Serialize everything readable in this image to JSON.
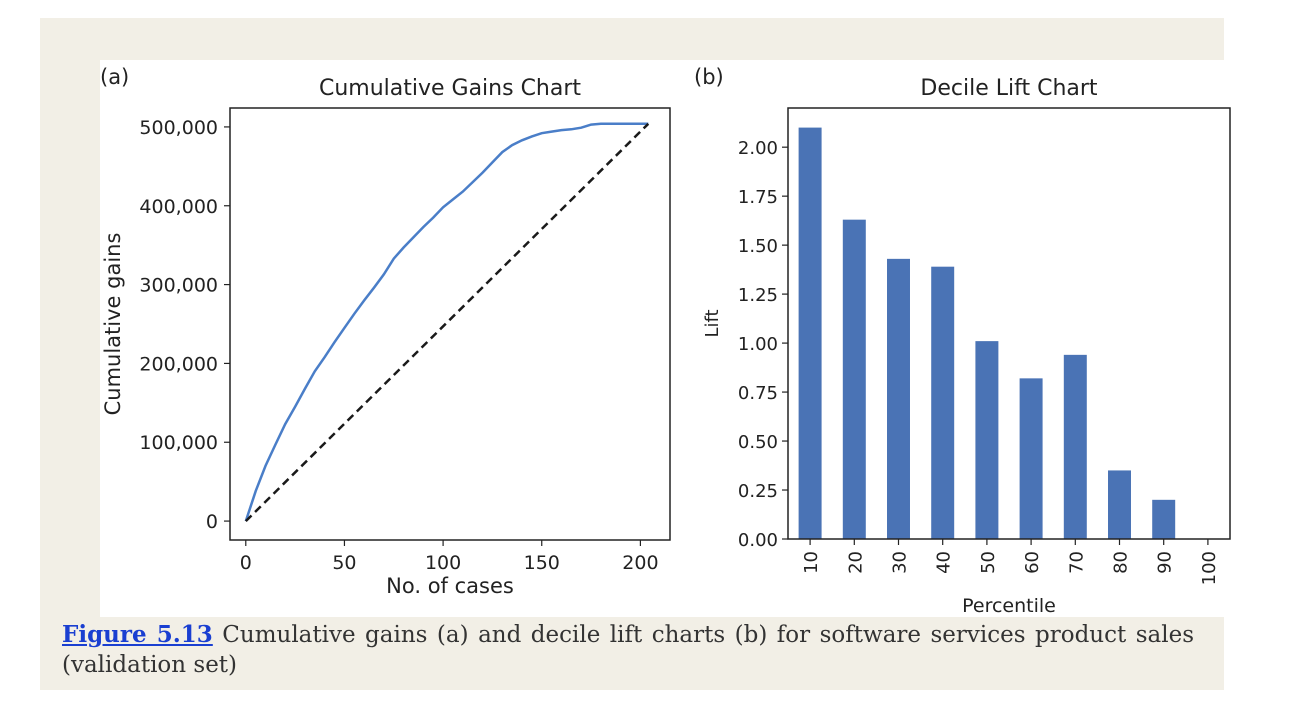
{
  "chart_data": [
    {
      "type": "line",
      "panel_label": "(a)",
      "title": "Cumulative Gains Chart",
      "xlabel": "No. of cases",
      "ylabel": "Cumulative gains",
      "xlim": [
        -8,
        215
      ],
      "ylim": [
        -24000,
        524000
      ],
      "xticks": [
        0,
        50,
        100,
        150,
        200
      ],
      "xtick_labels": [
        "0",
        "50",
        "100",
        "150",
        "200"
      ],
      "yticks": [
        0,
        100000,
        200000,
        300000,
        400000,
        500000
      ],
      "ytick_labels": [
        "0",
        "100,000",
        "200,000",
        "300,000",
        "400,000",
        "500,000"
      ],
      "grid": false,
      "series": [
        {
          "color": "#4a7ec8",
          "style": "solid",
          "x": [
            0,
            5,
            10,
            15,
            20,
            25,
            30,
            35,
            40,
            45,
            50,
            55,
            60,
            65,
            70,
            75,
            80,
            85,
            90,
            95,
            100,
            105,
            110,
            115,
            120,
            125,
            130,
            135,
            140,
            145,
            150,
            155,
            160,
            165,
            170,
            175,
            180,
            185,
            190,
            195,
            204
          ],
          "y": [
            0,
            38000,
            70000,
            97000,
            123000,
            145000,
            168000,
            190000,
            208000,
            227000,
            245000,
            263000,
            280000,
            296000,
            313000,
            333000,
            347000,
            360000,
            373000,
            385000,
            398000,
            408000,
            418000,
            430000,
            442000,
            455000,
            468000,
            477000,
            483000,
            488000,
            492000,
            494000,
            496000,
            497000,
            499000,
            503000,
            504000,
            504000,
            504000,
            504000,
            504000
          ]
        },
        {
          "color": "#1a1a1a",
          "style": "dashed",
          "x": [
            0,
            204
          ],
          "y": [
            0,
            504000
          ]
        }
      ]
    },
    {
      "type": "bar",
      "panel_label": "(b)",
      "title": "Decile Lift Chart",
      "xlabel": "Percentile",
      "ylabel": "Lift",
      "categories": [
        "10",
        "20",
        "30",
        "40",
        "50",
        "60",
        "70",
        "80",
        "90",
        "100"
      ],
      "values": [
        2.1,
        1.63,
        1.43,
        1.39,
        1.01,
        0.82,
        0.94,
        0.35,
        0.2,
        0
      ],
      "ylim": [
        0,
        2.2
      ],
      "yticks": [
        0,
        0.25,
        0.5,
        0.75,
        1.0,
        1.25,
        1.5,
        1.75,
        2.0
      ],
      "ytick_labels": [
        "0.00",
        "0.25",
        "0.50",
        "0.75",
        "1.00",
        "1.25",
        "1.50",
        "1.75",
        "2.00"
      ],
      "bar_color": "#4a73b5",
      "grid": false
    }
  ],
  "caption": {
    "link": "Figure 5.13",
    "text": " Cumulative gains (a) and decile lift charts (b) for software services product sales (validation set)"
  }
}
